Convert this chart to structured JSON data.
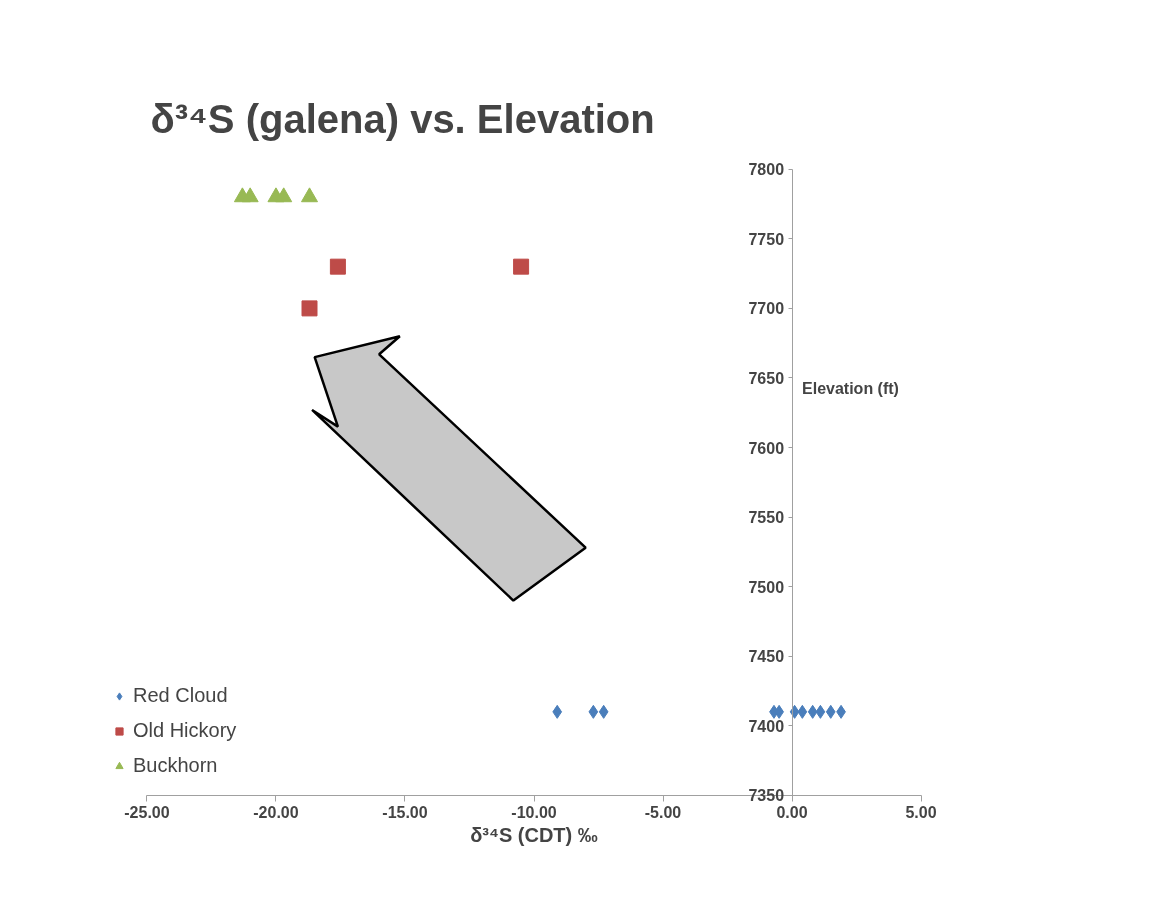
{
  "chart_data": {
    "type": "scatter",
    "title": "δ³⁴S  (galena) vs. Elevation",
    "xlabel": "δ³⁴S (CDT) ‰",
    "ylabel": "Elevation (ft)",
    "xlim": [
      -25,
      5
    ],
    "ylim": [
      7350,
      7800
    ],
    "xticks": [
      {
        "value": -25,
        "label": "-25.00"
      },
      {
        "value": -20,
        "label": "-20.00"
      },
      {
        "value": -15,
        "label": "-15.00"
      },
      {
        "value": -10,
        "label": "-10.00"
      },
      {
        "value": -5,
        "label": "-5.00"
      },
      {
        "value": 0,
        "label": "0.00"
      },
      {
        "value": 5,
        "label": "5.00"
      }
    ],
    "yticks": [
      7350,
      7400,
      7450,
      7500,
      7550,
      7600,
      7650,
      7700,
      7750,
      7800
    ],
    "grid": false,
    "legend": "bottom left",
    "series": [
      {
        "name": "Red Cloud",
        "color": "#4a7ebb",
        "marker": "diamond",
        "x": [
          -9.1,
          -7.7,
          -7.3,
          -0.7,
          -0.5,
          0.1,
          0.4,
          0.8,
          1.1,
          1.5,
          1.9
        ],
        "values": [
          7410,
          7410,
          7410,
          7410,
          7410,
          7410,
          7410,
          7410,
          7410,
          7410,
          7410
        ]
      },
      {
        "name": "Old Hickory",
        "color": "#be4b48",
        "marker": "square",
        "x": [
          -17.6,
          -10.5,
          -18.7
        ],
        "values": [
          7730,
          7730,
          7700
        ]
      },
      {
        "name": "Buckhorn",
        "color": "#98b954",
        "marker": "triangle",
        "x": [
          -21.3,
          -21.0,
          -20.0,
          -19.7,
          -18.7
        ],
        "values": [
          7780,
          7780,
          7780,
          7780,
          7780
        ]
      }
    ]
  }
}
